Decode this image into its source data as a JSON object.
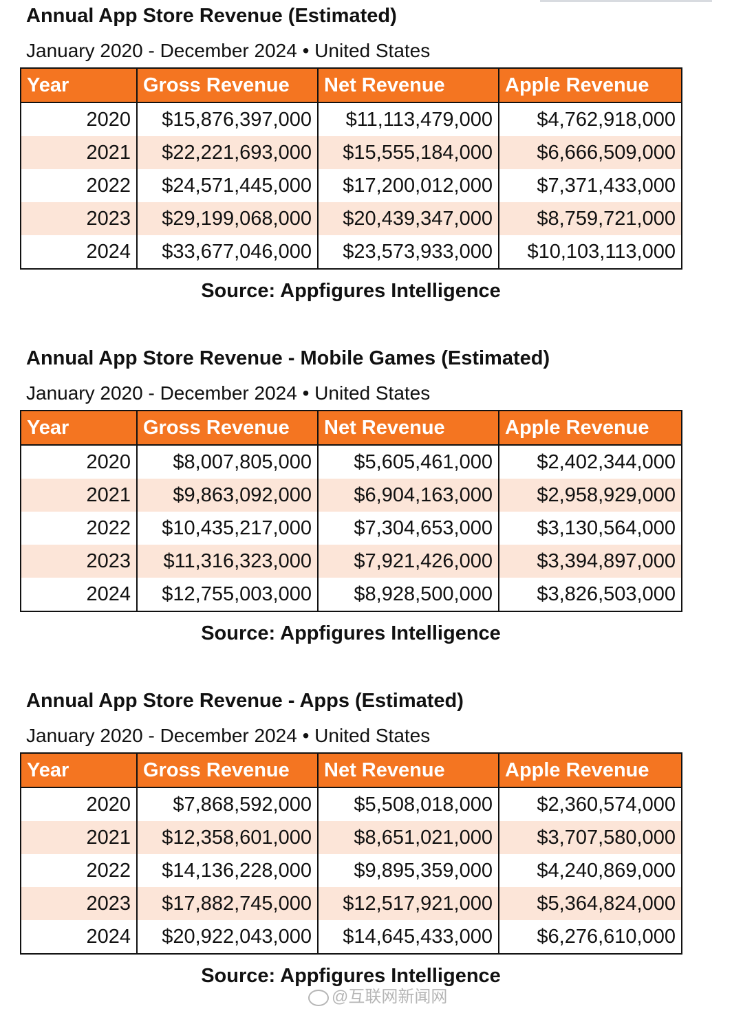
{
  "tables": [
    {
      "title": "Annual App Store Revenue (Estimated)",
      "subtitle": "January 2020 - December 2024 • United States",
      "headers": [
        "Year",
        "Gross Revenue",
        "Net Revenue",
        "Apple Revenue"
      ],
      "rows": [
        [
          "2020",
          "$15,876,397,000",
          "$11,113,479,000",
          "$4,762,918,000"
        ],
        [
          "2021",
          "$22,221,693,000",
          "$15,555,184,000",
          "$6,666,509,000"
        ],
        [
          "2022",
          "$24,571,445,000",
          "$17,200,012,000",
          "$7,371,433,000"
        ],
        [
          "2023",
          "$29,199,068,000",
          "$20,439,347,000",
          "$8,759,721,000"
        ],
        [
          "2024",
          "$33,677,046,000",
          "$23,573,933,000",
          "$10,103,113,000"
        ]
      ],
      "source": "Source: Appfigures Intelligence"
    },
    {
      "title": "Annual App Store Revenue - Mobile Games (Estimated)",
      "subtitle": "January 2020 - December 2024 • United States",
      "headers": [
        "Year",
        "Gross Revenue",
        "Net Revenue",
        "Apple Revenue"
      ],
      "rows": [
        [
          "2020",
          "$8,007,805,000",
          "$5,605,461,000",
          "$2,402,344,000"
        ],
        [
          "2021",
          "$9,863,092,000",
          "$6,904,163,000",
          "$2,958,929,000"
        ],
        [
          "2022",
          "$10,435,217,000",
          "$7,304,653,000",
          "$3,130,564,000"
        ],
        [
          "2023",
          "$11,316,323,000",
          "$7,921,426,000",
          "$3,394,897,000"
        ],
        [
          "2024",
          "$12,755,003,000",
          "$8,928,500,000",
          "$3,826,503,000"
        ]
      ],
      "source": "Source: Appfigures Intelligence"
    },
    {
      "title": "Annual App Store Revenue - Apps (Estimated)",
      "subtitle": "January 2020 - December 2024 • United States",
      "headers": [
        "Year",
        "Gross Revenue",
        "Net Revenue",
        "Apple Revenue"
      ],
      "rows": [
        [
          "2020",
          "$7,868,592,000",
          "$5,508,018,000",
          "$2,360,574,000"
        ],
        [
          "2021",
          "$12,358,601,000",
          "$8,651,021,000",
          "$3,707,580,000"
        ],
        [
          "2022",
          "$14,136,228,000",
          "$9,895,359,000",
          "$4,240,869,000"
        ],
        [
          "2023",
          "$17,882,745,000",
          "$12,517,921,000",
          "$5,364,824,000"
        ],
        [
          "2024",
          "$20,922,043,000",
          "$14,645,433,000",
          "$6,276,610,000"
        ]
      ],
      "source": "Source: Appfigures Intelligence"
    }
  ],
  "watermark": "@互联网新闻网",
  "colors": {
    "header_bg": "#f47521",
    "header_text": "#ffffff",
    "alt_row_bg": "#fce5d8",
    "border": "#111111"
  }
}
